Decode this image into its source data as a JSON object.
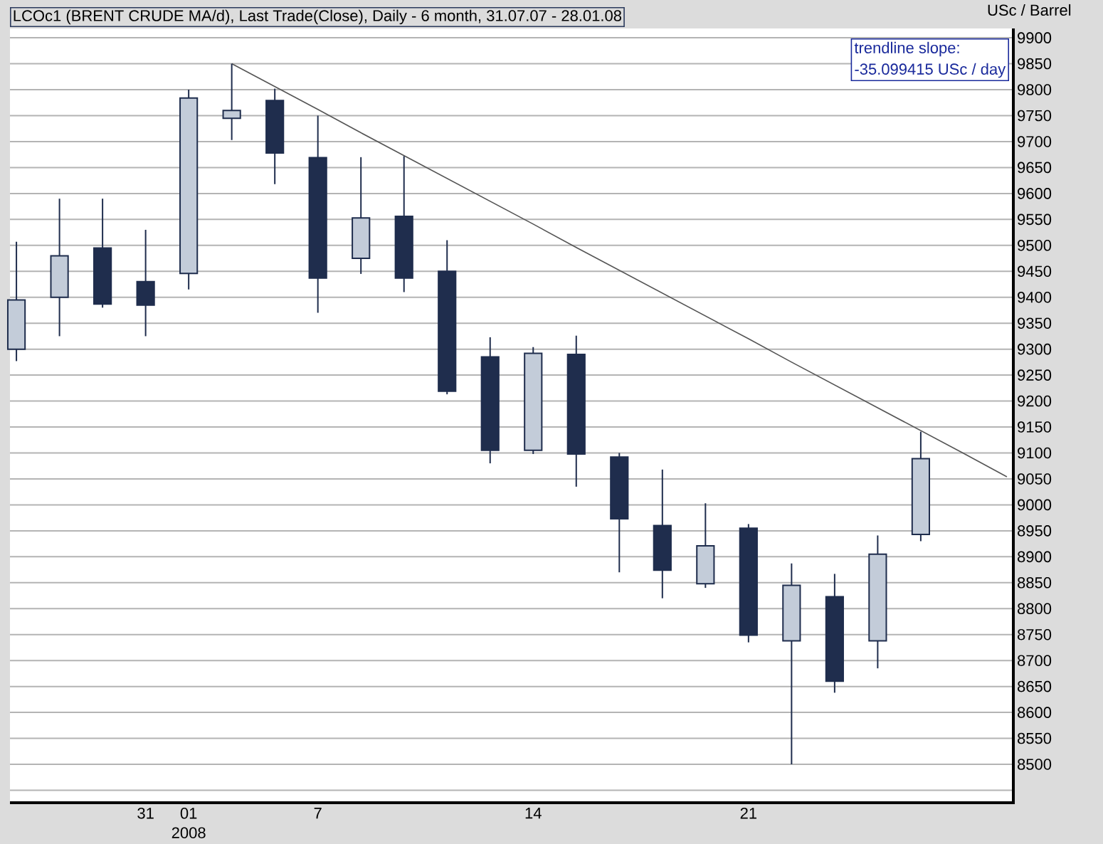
{
  "chart_data": {
    "type": "candlestick",
    "title": "LCOc1 (BRENT CRUDE MA/d), Last Trade(Close), Daily - 6 month, 31.07.07 - 28.01.08",
    "ylabel": "USc / Barrel",
    "categories": [
      null,
      null,
      null,
      "31",
      "01",
      null,
      null,
      "7",
      null,
      null,
      null,
      null,
      "14",
      null,
      null,
      null,
      null,
      "21",
      null,
      null,
      null,
      null,
      null,
      null
    ],
    "ohlc": [
      [
        9300,
        9507,
        9277,
        9395
      ],
      [
        9400,
        9590,
        9325,
        9480
      ],
      [
        9495,
        9590,
        9380,
        9387
      ],
      [
        9430,
        9530,
        9325,
        9385
      ],
      [
        9446,
        9800,
        9415,
        9784
      ],
      [
        9745,
        9850,
        9703,
        9760
      ],
      [
        9779,
        9802,
        9618,
        9678
      ],
      [
        9669,
        9750,
        9370,
        9437
      ],
      [
        9475,
        9670,
        9445,
        9553
      ],
      [
        9556,
        9672,
        9410,
        9437
      ],
      [
        9450,
        9510,
        9213,
        9219
      ],
      [
        9285,
        9323,
        9080,
        9105
      ],
      [
        9105,
        9304,
        9098,
        9292
      ],
      [
        9290,
        9326,
        9035,
        9098
      ],
      [
        9092,
        9100,
        8870,
        8973
      ],
      [
        8960,
        9068,
        8820,
        8874
      ],
      [
        8848,
        9003,
        8840,
        8921
      ],
      [
        8955,
        8963,
        8735,
        8749
      ],
      [
        8738,
        8887,
        8500,
        8845
      ],
      [
        8823,
        8867,
        8638,
        8660
      ],
      [
        8738,
        8941,
        8685,
        8905
      ],
      [
        8943,
        9141,
        8930,
        9089
      ],
      null,
      null
    ],
    "colors": [
      "#c3ccd9",
      "#c3ccd9",
      "#1f2d4d",
      "#1f2d4d",
      "#c3ccd9",
      "#c3ccd9",
      "#1f2d4d",
      "#1f2d4d",
      "#c3ccd9",
      "#1f2d4d",
      "#1f2d4d",
      "#1f2d4d",
      "#c3ccd9",
      "#1f2d4d",
      "#1f2d4d",
      "#1f2d4d",
      "#c3ccd9",
      "#1f2d4d",
      "#c3ccd9",
      "#1f2d4d",
      "#c3ccd9",
      "#c3ccd9",
      null,
      null
    ],
    "series": [
      {
        "type": "line",
        "color": "#555555",
        "values": [
          null,
          null,
          null,
          null,
          null,
          9850,
          9806,
          9762,
          9717,
          9673,
          9629,
          9585,
          9541,
          9496,
          9452,
          9408,
          9364,
          9320,
          9275,
          9231,
          9187,
          9143,
          9099,
          9054
        ]
      }
    ],
    "ylim": [
      8426,
      9918
    ],
    "yticks": [
      {
        "value": 8450,
        "label": null
      },
      8500,
      8550,
      8600,
      8650,
      8700,
      8750,
      8800,
      8850,
      8900,
      8950,
      9000,
      9050,
      9100,
      9150,
      9200,
      9250,
      9300,
      9350,
      9400,
      9450,
      9500,
      9550,
      9600,
      9650,
      9700,
      9750,
      9800,
      9850,
      9900
    ],
    "grid": "y",
    "annotations": [
      "trendline slope:",
      "-35.099415 USc / day",
      "2008"
    ]
  }
}
